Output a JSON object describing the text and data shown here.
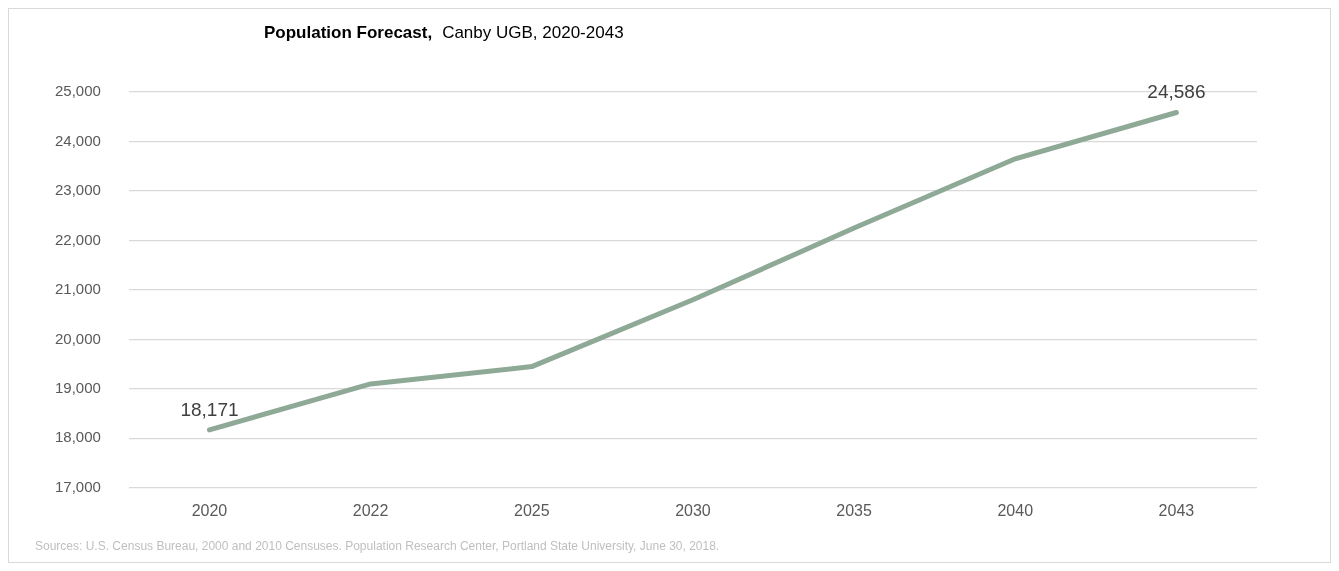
{
  "chart_data": {
    "type": "line",
    "title": "Population Forecast,",
    "subtitle": "Canby UGB, 2020-2043",
    "categories": [
      "2020",
      "2022",
      "2025",
      "2030",
      "2035",
      "2040",
      "2043"
    ],
    "series": [
      {
        "color": "#8fa997",
        "values": [
          18171,
          19100,
          19450,
          20800,
          22250,
          23650,
          24586
        ],
        "value_labels": [
          "18,171",
          null,
          null,
          null,
          null,
          null,
          "24,586"
        ]
      }
    ],
    "ylim": [
      17000,
      25000
    ],
    "yticks": [
      {
        "value": 17000,
        "label": "17,000"
      },
      {
        "value": 18000,
        "label": "18,000"
      },
      {
        "value": 19000,
        "label": "19,000"
      },
      {
        "value": 20000,
        "label": "20,000"
      },
      {
        "value": 21000,
        "label": "21,000"
      },
      {
        "value": 22000,
        "label": "22,000"
      },
      {
        "value": 23000,
        "label": "23,000"
      },
      {
        "value": 24000,
        "label": "24,000"
      },
      {
        "value": 25000,
        "label": "25,000"
      }
    ],
    "grid": "y",
    "legend": false,
    "marker": "none",
    "line_style": "solid",
    "annotations": [
      "Sources: U.S. Census Bureau, 2000 and 2010 Censuses. Population Research Center, Portland State University, June 30, 2018."
    ]
  }
}
